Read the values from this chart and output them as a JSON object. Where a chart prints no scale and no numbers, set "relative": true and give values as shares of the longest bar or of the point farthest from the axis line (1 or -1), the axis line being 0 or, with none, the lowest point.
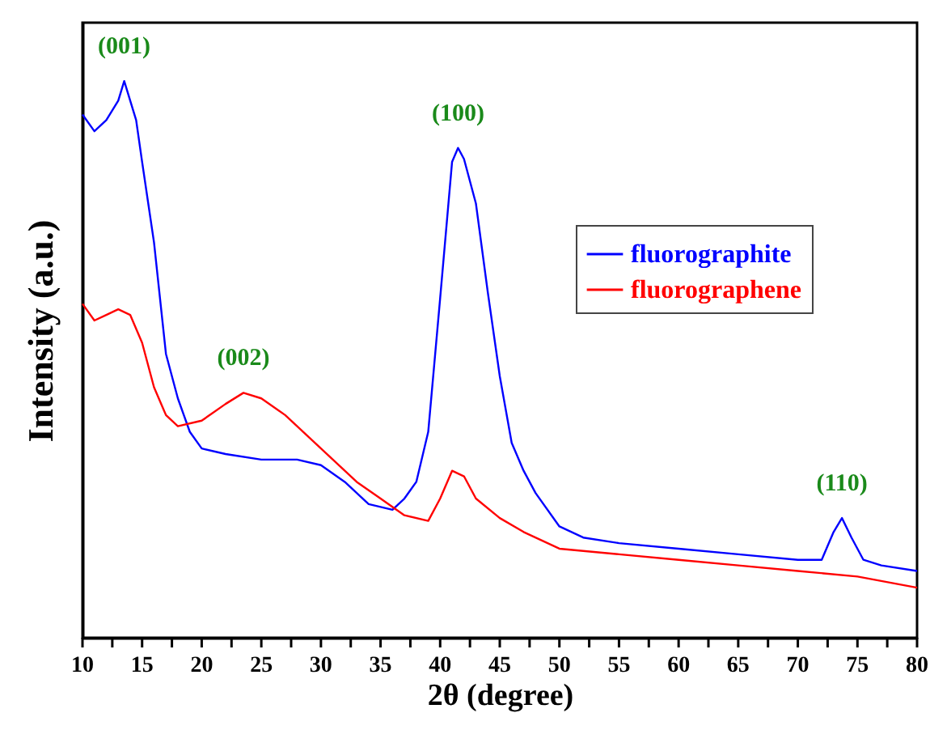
{
  "chart_data": {
    "type": "line",
    "xlabel": "2θ (degree)",
    "ylabel": "Intensity (a.u.)",
    "relative": true,
    "grid": false,
    "legend": "right",
    "line_style": "solid",
    "marker": "none",
    "xlim": [
      10,
      80
    ],
    "xticks": [
      10,
      {
        "value": 12.5,
        "label": null
      },
      15,
      {
        "value": 17.5,
        "label": null
      },
      20,
      {
        "value": 22.5,
        "label": null
      },
      25,
      {
        "value": 27.5,
        "label": null
      },
      30,
      {
        "value": 32.5,
        "label": null
      },
      35,
      {
        "value": 37.5,
        "label": null
      },
      40,
      {
        "value": 42.5,
        "label": null
      },
      45,
      {
        "value": 47.5,
        "label": null
      },
      50,
      {
        "value": 52.5,
        "label": null
      },
      55,
      {
        "value": 57.5,
        "label": null
      },
      60,
      {
        "value": 62.5,
        "label": null
      },
      65,
      {
        "value": 67.5,
        "label": null
      },
      70,
      {
        "value": 72.5,
        "label": null
      },
      75,
      {
        "value": 77.5,
        "label": null
      },
      80
    ],
    "series": [
      {
        "name": "fluorographite",
        "color": "#0000ff",
        "x": [
          10,
          11,
          12,
          13,
          13.5,
          14.5,
          15,
          16,
          17,
          18,
          19,
          20,
          22,
          25,
          28,
          30,
          32,
          34,
          36,
          37,
          38,
          39,
          40,
          41,
          41.5,
          42,
          43,
          44,
          45,
          46,
          47,
          48,
          50,
          52,
          55,
          60,
          65,
          70,
          72,
          73,
          73.7,
          74.5,
          75.5,
          77,
          80
        ],
        "values": [
          0.94,
          0.91,
          0.93,
          0.965,
          1,
          0.93,
          0.855,
          0.71,
          0.51,
          0.43,
          0.37,
          0.34,
          0.33,
          0.32,
          0.32,
          0.31,
          0.28,
          0.24,
          0.23,
          0.25,
          0.28,
          0.37,
          0.61,
          0.855,
          0.88,
          0.86,
          0.78,
          0.62,
          0.47,
          0.35,
          0.3,
          0.26,
          0.2,
          0.18,
          0.17,
          0.16,
          0.15,
          0.14,
          0.14,
          0.19,
          0.215,
          0.18,
          0.14,
          0.13,
          0.12
        ]
      },
      {
        "name": "fluorographene",
        "color": "#ff0000",
        "x": [
          10,
          11,
          12,
          13,
          14,
          15,
          16,
          17,
          18,
          20,
          22,
          23.5,
          25,
          27,
          29,
          31,
          33,
          35,
          37,
          39,
          40,
          41,
          42,
          43,
          45,
          47,
          50,
          55,
          60,
          65,
          70,
          75,
          80
        ],
        "values": [
          0.6,
          0.57,
          0.58,
          0.59,
          0.58,
          0.53,
          0.45,
          0.4,
          0.38,
          0.39,
          0.42,
          0.44,
          0.43,
          0.4,
          0.36,
          0.32,
          0.28,
          0.25,
          0.22,
          0.21,
          0.25,
          0.3,
          0.29,
          0.25,
          0.215,
          0.19,
          0.16,
          0.15,
          0.14,
          0.13,
          0.12,
          0.11,
          0.09
        ]
      }
    ],
    "annotations": [
      {
        "text": "(001)",
        "x": 13.5,
        "y": 1
      },
      {
        "text": "(002)",
        "x": 23.5,
        "y": 0.44
      },
      {
        "text": "(100)",
        "x": 41.5,
        "y": 0.88
      },
      {
        "text": "(110)",
        "x": 73.7,
        "y": 0.215
      }
    ]
  }
}
